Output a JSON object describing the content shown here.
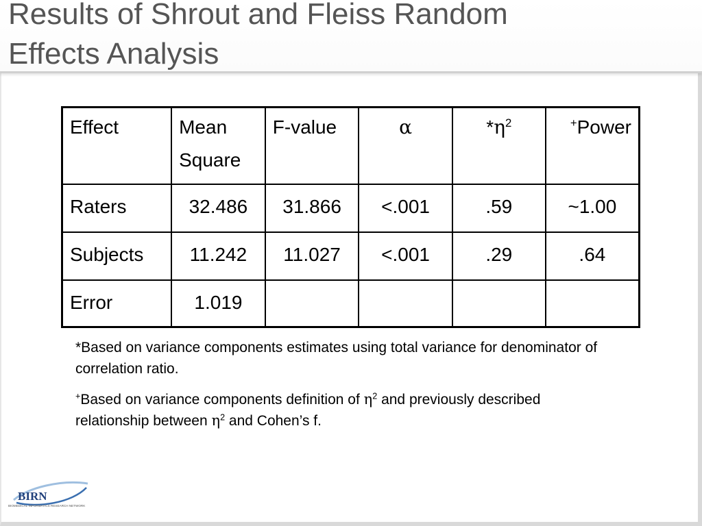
{
  "slide": {
    "title_line1": "Results of Shrout and Fleiss Random",
    "title_line2": "Effects Analysis"
  },
  "table": {
    "headers": {
      "effect": "Effect",
      "mean_square_1": "Mean",
      "mean_square_2": "Square",
      "f_value": "F-value",
      "alpha_symbol": "α",
      "eta_prefix": "*",
      "eta_symbol": "η",
      "eta_exp": "2",
      "power_prefix": "+",
      "power": "Power"
    },
    "rows": [
      {
        "effect": "Raters",
        "mean_square": "32.486",
        "f_value": "31.866",
        "alpha": "<.001",
        "eta2": ".59",
        "power": "~1.00"
      },
      {
        "effect": "Subjects",
        "mean_square": "11.242",
        "f_value": "11.027",
        "alpha": "<.001",
        "eta2": ".29",
        "power": ".64"
      },
      {
        "effect": "Error",
        "mean_square": "1.019",
        "f_value": "",
        "alpha": "",
        "eta2": "",
        "power": ""
      }
    ]
  },
  "notes": {
    "note1": "*Based on variance components estimates using total variance for denominator of correlation ratio.",
    "note2_prefix": "+",
    "note2_a": "Based on variance components definition of ",
    "eta": "η",
    "exp": "2",
    "note2_b": " and previously described relationship between ",
    "note2_c": " and Cohen’s f."
  },
  "logo": {
    "name": "BIRN",
    "tagline": "BIOMEDICAL INFORMATICS RESEARCH NETWORK",
    "accent_color": "#3a6fb0"
  }
}
